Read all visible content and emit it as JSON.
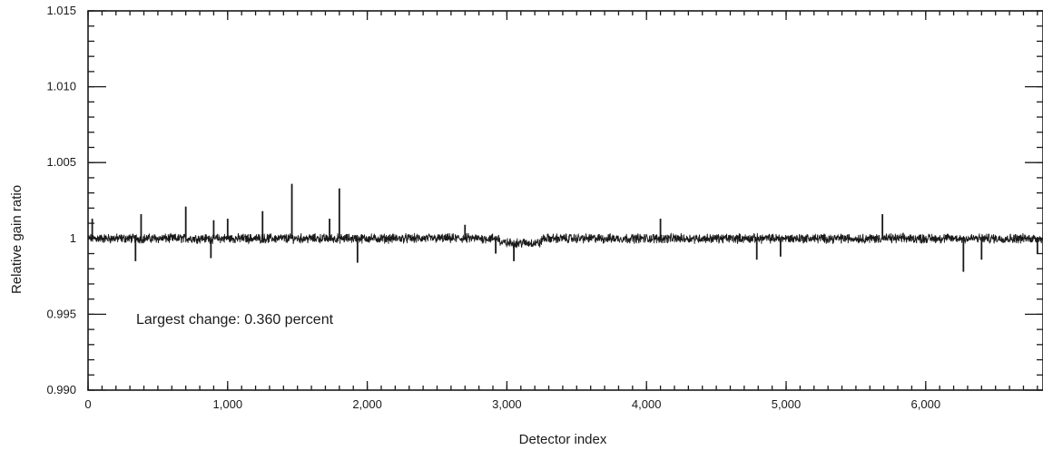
{
  "chart_data": {
    "type": "line",
    "title": "",
    "xlabel": "Detector index",
    "ylabel": "Relative gain ratio",
    "xlim": [
      0,
      6840
    ],
    "ylim": [
      0.99,
      1.015
    ],
    "x_ticks": [
      0,
      1000,
      2000,
      3000,
      4000,
      5000,
      6000
    ],
    "x_tick_labels": [
      "0",
      "1,000",
      "2,000",
      "3,000",
      "4,000",
      "5,000",
      "6,000"
    ],
    "x_minor_step": 100,
    "y_ticks": [
      0.99,
      0.995,
      1.0,
      1.005,
      1.01,
      1.015
    ],
    "y_tick_labels": [
      "0.990",
      "0.995",
      "1",
      "1.005",
      "1.010",
      "1.015"
    ],
    "y_minor_step": 0.001,
    "grid": false,
    "legend": "none",
    "annotation": "Largest change: 0.360 percent",
    "series_color": "#1a1a1a",
    "series": [
      {
        "baseline_segments": [
          {
            "x_start": 0,
            "x_end": 2950,
            "y": 1.0
          },
          {
            "x_start": 2950,
            "x_end": 3250,
            "y": 0.9997
          },
          {
            "x_start": 3250,
            "x_end": 6840,
            "y": 1.0
          }
        ],
        "noise_amplitude": 0.00025,
        "spikes": [
          {
            "x": 30,
            "y": 1.0013
          },
          {
            "x": 340,
            "y": 0.9985
          },
          {
            "x": 380,
            "y": 1.0016
          },
          {
            "x": 700,
            "y": 1.0021
          },
          {
            "x": 880,
            "y": 0.9987
          },
          {
            "x": 900,
            "y": 1.0012
          },
          {
            "x": 1000,
            "y": 1.0013
          },
          {
            "x": 1250,
            "y": 1.0018
          },
          {
            "x": 1460,
            "y": 1.0036
          },
          {
            "x": 1730,
            "y": 1.0013
          },
          {
            "x": 1800,
            "y": 1.0033
          },
          {
            "x": 1930,
            "y": 0.9984
          },
          {
            "x": 2700,
            "y": 1.0009
          },
          {
            "x": 2920,
            "y": 0.999
          },
          {
            "x": 3050,
            "y": 0.9985
          },
          {
            "x": 4100,
            "y": 1.0013
          },
          {
            "x": 4790,
            "y": 0.9986
          },
          {
            "x": 4960,
            "y": 0.9988
          },
          {
            "x": 5690,
            "y": 1.0016
          },
          {
            "x": 6270,
            "y": 0.9978
          },
          {
            "x": 6400,
            "y": 0.9986
          },
          {
            "x": 6800,
            "y": 0.999
          }
        ]
      }
    ]
  }
}
